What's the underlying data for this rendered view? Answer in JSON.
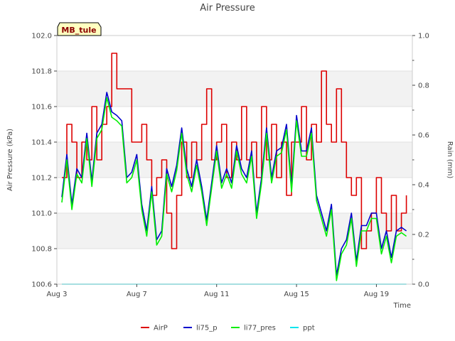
{
  "chart_data": {
    "type": "line",
    "title": "Air Pressure",
    "station_label": "MB_tule",
    "xlabel": "Time",
    "ylabel": "Air Pressure (kPa)",
    "y2label": "Rain (mm)",
    "xlim": [
      "2023-08-03",
      "2023-08-20.8"
    ],
    "ylim": [
      100.6,
      102.0
    ],
    "y2lim": [
      0.0,
      1.0
    ],
    "x_ticks": [
      {
        "date": "2023-08-03",
        "label": "Aug 3"
      },
      {
        "date": "2023-08-07",
        "label": "Aug 7"
      },
      {
        "date": "2023-08-11",
        "label": "Aug 11"
      },
      {
        "date": "2023-08-15",
        "label": "Aug 15"
      },
      {
        "date": "2023-08-19",
        "label": "Aug 19"
      }
    ],
    "y_ticks": [
      "100.6",
      "100.8",
      "101.0",
      "101.2",
      "101.4",
      "101.6",
      "101.8",
      "102.0"
    ],
    "y2_ticks": [
      "0.0",
      "0.2",
      "0.4",
      "0.6",
      "0.8",
      "1.0"
    ],
    "grid": true,
    "legend_position": "bottom",
    "series": [
      {
        "name": "AirP",
        "color": "#dd0000",
        "axis": "left",
        "x": [
          "2023-08-03T06",
          "2023-08-03T12",
          "2023-08-03T18",
          "2023-08-04T00",
          "2023-08-04T06",
          "2023-08-04T12",
          "2023-08-04T18",
          "2023-08-05T00",
          "2023-08-05T06",
          "2023-08-05T12",
          "2023-08-05T18",
          "2023-08-06T00",
          "2023-08-06T06",
          "2023-08-06T12",
          "2023-08-06T18",
          "2023-08-07T00",
          "2023-08-07T06",
          "2023-08-07T12",
          "2023-08-07T18",
          "2023-08-08T00",
          "2023-08-08T06",
          "2023-08-08T12",
          "2023-08-08T18",
          "2023-08-09T00",
          "2023-08-09T06",
          "2023-08-09T12",
          "2023-08-09T18",
          "2023-08-10T00",
          "2023-08-10T06",
          "2023-08-10T12",
          "2023-08-10T18",
          "2023-08-11T00",
          "2023-08-11T06",
          "2023-08-11T12",
          "2023-08-11T18",
          "2023-08-12T00",
          "2023-08-12T06",
          "2023-08-12T12",
          "2023-08-12T18",
          "2023-08-13T00",
          "2023-08-13T06",
          "2023-08-13T12",
          "2023-08-13T18",
          "2023-08-14T00",
          "2023-08-14T06",
          "2023-08-14T12",
          "2023-08-14T18",
          "2023-08-15T00",
          "2023-08-15T06",
          "2023-08-15T12",
          "2023-08-15T18",
          "2023-08-16T00",
          "2023-08-16T06",
          "2023-08-16T12",
          "2023-08-16T18",
          "2023-08-17T00",
          "2023-08-17T06",
          "2023-08-17T12",
          "2023-08-17T18",
          "2023-08-18T00",
          "2023-08-18T06",
          "2023-08-18T12",
          "2023-08-18T18",
          "2023-08-19T00",
          "2023-08-19T06",
          "2023-08-19T12",
          "2023-08-19T18",
          "2023-08-20T00",
          "2023-08-20T06",
          "2023-08-20T12"
        ],
        "values": [
          101.2,
          101.5,
          101.4,
          101.2,
          101.4,
          101.3,
          101.6,
          101.3,
          101.5,
          101.6,
          101.9,
          101.7,
          101.7,
          101.7,
          101.4,
          101.4,
          101.5,
          101.3,
          101.1,
          101.2,
          101.3,
          101.0,
          100.8,
          101.1,
          101.4,
          101.2,
          101.4,
          101.3,
          101.5,
          101.7,
          101.3,
          101.4,
          101.5,
          101.2,
          101.4,
          101.3,
          101.6,
          101.3,
          101.4,
          101.2,
          101.6,
          101.3,
          101.5,
          101.2,
          101.4,
          101.1,
          101.4,
          101.4,
          101.6,
          101.3,
          101.5,
          101.4,
          101.8,
          101.5,
          101.4,
          101.7,
          101.4,
          101.2,
          101.1,
          101.2,
          100.8,
          100.9,
          101.0,
          101.2,
          101.0,
          100.9,
          101.1,
          100.9,
          101.0,
          101.1
        ]
      },
      {
        "name": "li75_p",
        "color": "#0000cc",
        "axis": "left",
        "x": [
          "2023-08-03T06",
          "2023-08-03T12",
          "2023-08-03T18",
          "2023-08-04T00",
          "2023-08-04T06",
          "2023-08-04T12",
          "2023-08-04T18",
          "2023-08-05T00",
          "2023-08-05T06",
          "2023-08-05T12",
          "2023-08-05T18",
          "2023-08-06T00",
          "2023-08-06T06",
          "2023-08-06T12",
          "2023-08-06T18",
          "2023-08-07T00",
          "2023-08-07T06",
          "2023-08-07T12",
          "2023-08-07T18",
          "2023-08-08T00",
          "2023-08-08T06",
          "2023-08-08T12",
          "2023-08-08T18",
          "2023-08-09T00",
          "2023-08-09T06",
          "2023-08-09T12",
          "2023-08-09T18",
          "2023-08-10T00",
          "2023-08-10T06",
          "2023-08-10T12",
          "2023-08-10T18",
          "2023-08-11T00",
          "2023-08-11T06",
          "2023-08-11T12",
          "2023-08-11T18",
          "2023-08-12T00",
          "2023-08-12T06",
          "2023-08-12T12",
          "2023-08-12T18",
          "2023-08-13T00",
          "2023-08-13T06",
          "2023-08-13T12",
          "2023-08-13T18",
          "2023-08-14T00",
          "2023-08-14T06",
          "2023-08-14T12",
          "2023-08-14T18",
          "2023-08-15T00",
          "2023-08-15T06",
          "2023-08-15T12",
          "2023-08-15T18",
          "2023-08-16T00",
          "2023-08-16T06",
          "2023-08-16T12",
          "2023-08-16T18",
          "2023-08-17T00",
          "2023-08-17T06",
          "2023-08-17T12",
          "2023-08-17T18",
          "2023-08-18T00",
          "2023-08-18T06",
          "2023-08-18T12",
          "2023-08-18T18",
          "2023-08-19T00",
          "2023-08-19T06",
          "2023-08-19T12",
          "2023-08-19T18",
          "2023-08-20T00",
          "2023-08-20T06",
          "2023-08-20T12"
        ],
        "values": [
          101.09,
          101.33,
          101.05,
          101.25,
          101.2,
          101.45,
          101.18,
          101.45,
          101.5,
          101.68,
          101.57,
          101.55,
          101.52,
          101.2,
          101.23,
          101.33,
          101.05,
          100.9,
          101.15,
          100.85,
          100.9,
          101.25,
          101.15,
          101.27,
          101.48,
          101.25,
          101.15,
          101.3,
          101.15,
          100.96,
          101.17,
          101.38,
          101.17,
          101.25,
          101.17,
          101.38,
          101.25,
          101.2,
          101.35,
          101.0,
          101.2,
          101.48,
          101.2,
          101.35,
          101.37,
          101.5,
          101.15,
          101.55,
          101.35,
          101.35,
          101.48,
          101.1,
          101.0,
          100.9,
          101.05,
          100.65,
          100.8,
          100.85,
          101.0,
          100.73,
          100.93,
          100.93,
          101.0,
          101.0,
          100.8,
          100.9,
          100.75,
          100.9,
          100.92,
          100.9
        ]
      },
      {
        "name": "li77_pres",
        "color": "#00ee00",
        "axis": "left",
        "x": [
          "2023-08-03T06",
          "2023-08-03T12",
          "2023-08-03T18",
          "2023-08-04T00",
          "2023-08-04T06",
          "2023-08-04T12",
          "2023-08-04T18",
          "2023-08-05T00",
          "2023-08-05T06",
          "2023-08-05T12",
          "2023-08-05T18",
          "2023-08-06T00",
          "2023-08-06T06",
          "2023-08-06T12",
          "2023-08-06T18",
          "2023-08-07T00",
          "2023-08-07T06",
          "2023-08-07T12",
          "2023-08-07T18",
          "2023-08-08T00",
          "2023-08-08T06",
          "2023-08-08T12",
          "2023-08-08T18",
          "2023-08-09T00",
          "2023-08-09T06",
          "2023-08-09T12",
          "2023-08-09T18",
          "2023-08-10T00",
          "2023-08-10T06",
          "2023-08-10T12",
          "2023-08-10T18",
          "2023-08-11T00",
          "2023-08-11T06",
          "2023-08-11T12",
          "2023-08-11T18",
          "2023-08-12T00",
          "2023-08-12T06",
          "2023-08-12T12",
          "2023-08-12T18",
          "2023-08-13T00",
          "2023-08-13T06",
          "2023-08-13T12",
          "2023-08-13T18",
          "2023-08-14T00",
          "2023-08-14T06",
          "2023-08-14T12",
          "2023-08-14T18",
          "2023-08-15T00",
          "2023-08-15T06",
          "2023-08-15T12",
          "2023-08-15T18",
          "2023-08-16T00",
          "2023-08-16T06",
          "2023-08-16T12",
          "2023-08-16T18",
          "2023-08-17T00",
          "2023-08-17T06",
          "2023-08-17T12",
          "2023-08-17T18",
          "2023-08-18T00",
          "2023-08-18T06",
          "2023-08-18T12",
          "2023-08-18T18",
          "2023-08-19T00",
          "2023-08-19T06",
          "2023-08-19T12",
          "2023-08-19T18",
          "2023-08-20T00",
          "2023-08-20T06",
          "2023-08-20T12"
        ],
        "values": [
          101.06,
          101.3,
          101.02,
          101.22,
          101.17,
          101.42,
          101.15,
          101.42,
          101.47,
          101.65,
          101.54,
          101.52,
          101.49,
          101.17,
          101.2,
          101.3,
          101.02,
          100.87,
          101.12,
          100.82,
          100.87,
          101.22,
          101.12,
          101.24,
          101.45,
          101.22,
          101.12,
          101.27,
          101.12,
          100.93,
          101.14,
          101.35,
          101.14,
          101.22,
          101.14,
          101.35,
          101.22,
          101.17,
          101.32,
          100.97,
          101.17,
          101.45,
          101.17,
          101.32,
          101.34,
          101.47,
          101.12,
          101.52,
          101.32,
          101.32,
          101.45,
          101.07,
          100.97,
          100.87,
          101.02,
          100.62,
          100.77,
          100.82,
          100.97,
          100.7,
          100.9,
          100.9,
          100.97,
          100.97,
          100.77,
          100.87,
          100.72,
          100.87,
          100.89,
          100.87
        ]
      },
      {
        "name": "ppt",
        "color": "#00e5ee",
        "axis": "right",
        "x": [
          "2023-08-03T06",
          "2023-08-20T12"
        ],
        "values": [
          0.0,
          0.0
        ]
      }
    ]
  }
}
